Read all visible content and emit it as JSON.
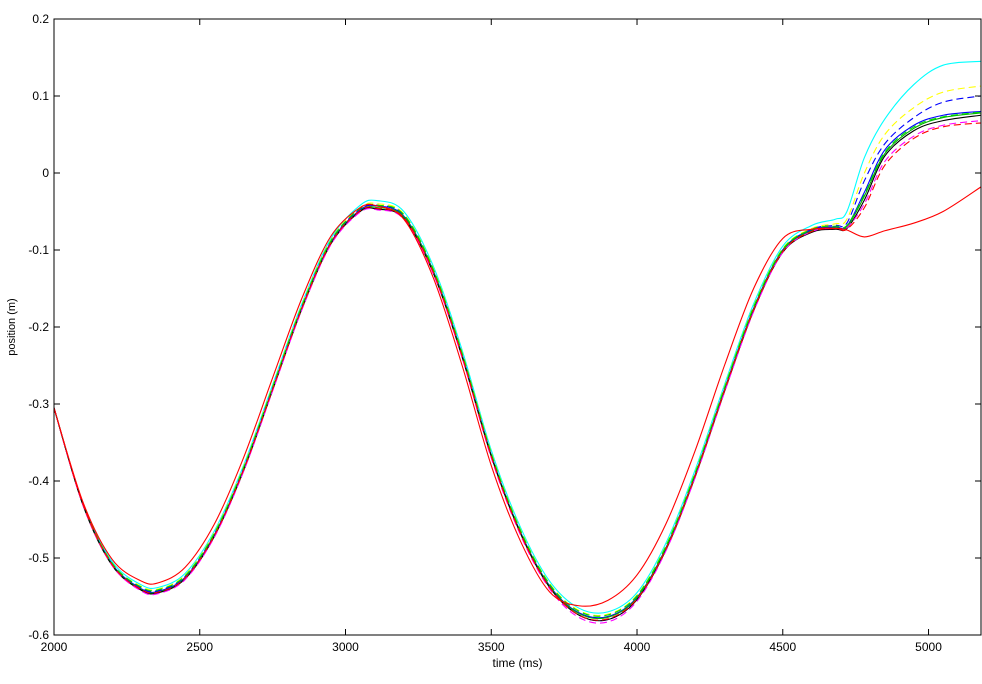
{
  "chart_data": {
    "type": "line",
    "title": "",
    "xlabel": "time (ms)",
    "ylabel": "position (m)",
    "xlim": [
      2000,
      5180
    ],
    "ylim": [
      -0.6,
      0.2
    ],
    "grid": false,
    "x_ticks": [
      2000,
      2500,
      3000,
      3500,
      4000,
      4500,
      5000
    ],
    "y_ticks": [
      -0.6,
      -0.5,
      -0.4,
      -0.3,
      -0.2,
      -0.1,
      0,
      0.1,
      0.2
    ],
    "x_tick_labels": [
      "2000",
      "2500",
      "3000",
      "3500",
      "4000",
      "4500",
      "5000"
    ],
    "y_tick_labels": [
      "-0.6",
      "-0.5",
      "-0.4",
      "-0.3",
      "-0.2",
      "-0.1",
      "0",
      "0.1",
      "0.2"
    ],
    "x": [
      2000,
      2100,
      2200,
      2300,
      2360,
      2450,
      2550,
      2650,
      2750,
      2850,
      2950,
      3050,
      3110,
      3200,
      3300,
      3400,
      3500,
      3600,
      3700,
      3800,
      3900,
      4000,
      4100,
      4200,
      4300,
      4400,
      4500,
      4600,
      4680,
      4720,
      4780,
      4850,
      4950,
      5050,
      5180
    ],
    "series": [
      {
        "color": "#00ffff",
        "dash": false,
        "values": [
          -0.305,
          -0.43,
          -0.505,
          -0.535,
          -0.538,
          -0.52,
          -0.465,
          -0.38,
          -0.275,
          -0.17,
          -0.085,
          -0.042,
          -0.036,
          -0.05,
          -0.12,
          -0.23,
          -0.36,
          -0.46,
          -0.53,
          -0.565,
          -0.57,
          -0.545,
          -0.48,
          -0.385,
          -0.275,
          -0.17,
          -0.095,
          -0.068,
          -0.06,
          -0.05,
          0.02,
          0.07,
          0.115,
          0.14,
          0.145
        ]
      },
      {
        "color": "#ffff00",
        "dash": true,
        "values": [
          -0.305,
          -0.43,
          -0.507,
          -0.537,
          -0.54,
          -0.522,
          -0.467,
          -0.382,
          -0.277,
          -0.172,
          -0.087,
          -0.045,
          -0.04,
          -0.053,
          -0.123,
          -0.233,
          -0.363,
          -0.463,
          -0.533,
          -0.568,
          -0.573,
          -0.548,
          -0.483,
          -0.388,
          -0.278,
          -0.173,
          -0.098,
          -0.072,
          -0.066,
          -0.06,
          0.0,
          0.05,
          0.085,
          0.105,
          0.113
        ]
      },
      {
        "color": "#0000ff",
        "dash": true,
        "values": [
          -0.305,
          -0.431,
          -0.508,
          -0.539,
          -0.542,
          -0.524,
          -0.469,
          -0.384,
          -0.279,
          -0.174,
          -0.089,
          -0.047,
          -0.042,
          -0.055,
          -0.125,
          -0.235,
          -0.366,
          -0.467,
          -0.538,
          -0.574,
          -0.58,
          -0.553,
          -0.487,
          -0.392,
          -0.281,
          -0.176,
          -0.1,
          -0.073,
          -0.068,
          -0.065,
          -0.01,
          0.038,
          0.072,
          0.092,
          0.1
        ]
      },
      {
        "color": "#0000ff",
        "dash": false,
        "values": [
          -0.305,
          -0.431,
          -0.508,
          -0.54,
          -0.543,
          -0.525,
          -0.47,
          -0.385,
          -0.28,
          -0.175,
          -0.09,
          -0.048,
          -0.043,
          -0.056,
          -0.126,
          -0.236,
          -0.366,
          -0.466,
          -0.536,
          -0.571,
          -0.576,
          -0.551,
          -0.486,
          -0.391,
          -0.281,
          -0.176,
          -0.1,
          -0.074,
          -0.07,
          -0.069,
          -0.025,
          0.03,
          0.062,
          0.075,
          0.08
        ]
      },
      {
        "color": "#00b000",
        "dash": false,
        "values": [
          -0.305,
          -0.431,
          -0.509,
          -0.541,
          -0.544,
          -0.526,
          -0.471,
          -0.386,
          -0.281,
          -0.176,
          -0.091,
          -0.049,
          -0.045,
          -0.057,
          -0.127,
          -0.237,
          -0.367,
          -0.467,
          -0.537,
          -0.572,
          -0.577,
          -0.552,
          -0.487,
          -0.392,
          -0.282,
          -0.177,
          -0.101,
          -0.075,
          -0.071,
          -0.07,
          -0.03,
          0.025,
          0.058,
          0.072,
          0.078
        ]
      },
      {
        "color": "#00dd00",
        "dash": true,
        "values": [
          -0.305,
          -0.43,
          -0.507,
          -0.538,
          -0.541,
          -0.523,
          -0.468,
          -0.383,
          -0.278,
          -0.173,
          -0.088,
          -0.046,
          -0.042,
          -0.054,
          -0.124,
          -0.234,
          -0.364,
          -0.464,
          -0.534,
          -0.569,
          -0.574,
          -0.549,
          -0.484,
          -0.389,
          -0.279,
          -0.174,
          -0.099,
          -0.073,
          -0.069,
          -0.068,
          -0.028,
          0.027,
          0.06,
          0.073,
          0.079
        ]
      },
      {
        "color": "#000000",
        "dash": false,
        "values": [
          -0.305,
          -0.432,
          -0.51,
          -0.542,
          -0.545,
          -0.527,
          -0.472,
          -0.387,
          -0.282,
          -0.177,
          -0.092,
          -0.05,
          -0.047,
          -0.059,
          -0.129,
          -0.239,
          -0.368,
          -0.468,
          -0.538,
          -0.574,
          -0.58,
          -0.554,
          -0.489,
          -0.394,
          -0.284,
          -0.179,
          -0.103,
          -0.077,
          -0.073,
          -0.072,
          -0.035,
          0.022,
          0.055,
          0.068,
          0.075
        ]
      },
      {
        "color": "#ff00ff",
        "dash": true,
        "values": [
          -0.305,
          -0.432,
          -0.51,
          -0.543,
          -0.546,
          -0.528,
          -0.473,
          -0.388,
          -0.283,
          -0.178,
          -0.093,
          -0.051,
          -0.048,
          -0.06,
          -0.13,
          -0.24,
          -0.37,
          -0.47,
          -0.54,
          -0.577,
          -0.583,
          -0.556,
          -0.49,
          -0.395,
          -0.285,
          -0.18,
          -0.103,
          -0.076,
          -0.072,
          -0.071,
          -0.04,
          0.015,
          0.048,
          0.062,
          0.068
        ]
      },
      {
        "color": "#ff0000",
        "dash": true,
        "values": [
          -0.305,
          -0.431,
          -0.509,
          -0.541,
          -0.544,
          -0.526,
          -0.471,
          -0.386,
          -0.281,
          -0.176,
          -0.091,
          -0.049,
          -0.046,
          -0.058,
          -0.128,
          -0.238,
          -0.368,
          -0.468,
          -0.538,
          -0.574,
          -0.579,
          -0.553,
          -0.488,
          -0.393,
          -0.283,
          -0.178,
          -0.102,
          -0.076,
          -0.072,
          -0.073,
          -0.045,
          0.01,
          0.045,
          0.06,
          0.065
        ]
      },
      {
        "color": "#ff0000",
        "dash": false,
        "values": [
          -0.305,
          -0.428,
          -0.502,
          -0.53,
          -0.532,
          -0.512,
          -0.456,
          -0.37,
          -0.266,
          -0.163,
          -0.082,
          -0.045,
          -0.043,
          -0.06,
          -0.135,
          -0.25,
          -0.38,
          -0.478,
          -0.544,
          -0.562,
          -0.555,
          -0.522,
          -0.455,
          -0.36,
          -0.25,
          -0.15,
          -0.085,
          -0.073,
          -0.072,
          -0.074,
          -0.083,
          -0.075,
          -0.065,
          -0.05,
          -0.018
        ]
      }
    ]
  }
}
